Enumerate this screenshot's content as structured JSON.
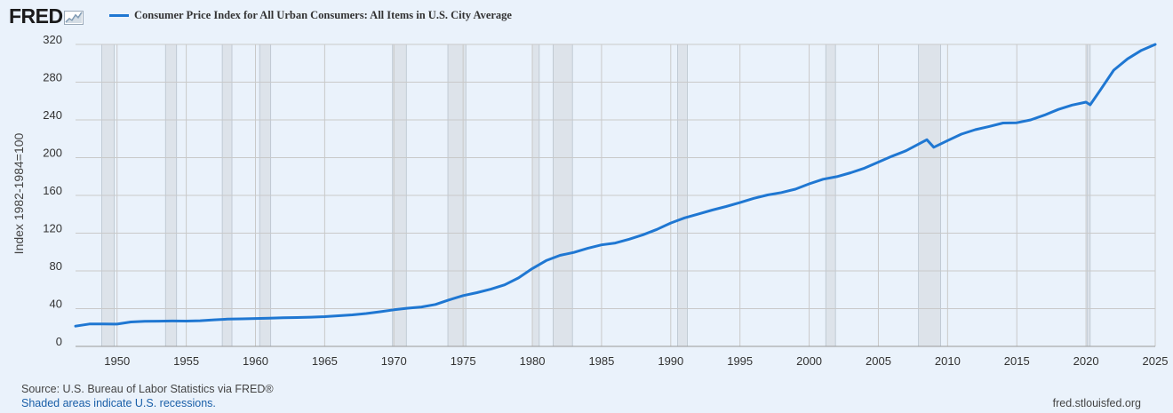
{
  "brand": {
    "logo_text": "FRED",
    "logo_mark": "fred-chart-icon"
  },
  "footer": {
    "source": "Source: U.S. Bureau of Labor Statistics via FRED®",
    "note": "Shaded areas indicate U.S. recessions.",
    "site": "fred.stlouisfed.org"
  },
  "colors": {
    "series": "#1f77d2",
    "recession": "#dde3ea",
    "grid": "#c9c9c9",
    "background": "#eaf2fb"
  },
  "chart_data": {
    "type": "line",
    "title": "",
    "xlabel": "",
    "ylabel": "Index 1982-1984=100",
    "legend": "top-left",
    "grid": true,
    "xlim": [
      1947,
      2025
    ],
    "ylim": [
      0,
      320
    ],
    "x_ticks": [
      "1950",
      "1955",
      "1960",
      "1965",
      "1970",
      "1975",
      "1980",
      "1985",
      "1990",
      "1995",
      "2000",
      "2005",
      "2010",
      "2015",
      "2020",
      "2025"
    ],
    "y_ticks": [
      "0",
      "40",
      "80",
      "120",
      "160",
      "200",
      "240",
      "280",
      "320"
    ],
    "recessions": [
      [
        1948.9,
        1949.8
      ],
      [
        1953.5,
        1954.3
      ],
      [
        1957.6,
        1958.3
      ],
      [
        1960.3,
        1961.1
      ],
      [
        1969.9,
        1970.9
      ],
      [
        1973.9,
        1975.2
      ],
      [
        1980.0,
        1980.5
      ],
      [
        1981.5,
        1982.9
      ],
      [
        1990.5,
        1991.2
      ],
      [
        2001.2,
        2001.9
      ],
      [
        2007.9,
        2009.5
      ],
      [
        2020.1,
        2020.3
      ]
    ],
    "series": [
      {
        "name": "Consumer Price Index for All Urban Consumers: All Items in U.S. City Average",
        "x": [
          1947,
          1948,
          1949,
          1950,
          1951,
          1952,
          1953,
          1954,
          1955,
          1956,
          1957,
          1958,
          1959,
          1960,
          1961,
          1962,
          1963,
          1964,
          1965,
          1966,
          1967,
          1968,
          1969,
          1970,
          1971,
          1972,
          1973,
          1974,
          1975,
          1976,
          1977,
          1978,
          1979,
          1980,
          1981,
          1982,
          1983,
          1984,
          1985,
          1986,
          1987,
          1988,
          1989,
          1990,
          1991,
          1992,
          1993,
          1994,
          1995,
          1996,
          1997,
          1998,
          1999,
          2000,
          2001,
          2002,
          2003,
          2004,
          2005,
          2006,
          2007,
          2008.5,
          2009,
          2010,
          2011,
          2012,
          2013,
          2014,
          2015,
          2016,
          2017,
          2018,
          2019,
          2020,
          2020.3,
          2021,
          2022,
          2023,
          2024,
          2025
        ],
        "y": [
          21.5,
          23.7,
          23.8,
          23.6,
          25.9,
          26.5,
          26.7,
          26.9,
          26.8,
          27.2,
          28.1,
          28.9,
          29.2,
          29.6,
          29.9,
          30.3,
          30.6,
          31.0,
          31.5,
          32.5,
          33.4,
          34.8,
          36.7,
          38.8,
          40.5,
          41.8,
          44.4,
          49.3,
          53.8,
          56.9,
          60.6,
          65.2,
          72.6,
          82.4,
          90.9,
          96.5,
          99.6,
          103.9,
          107.6,
          109.6,
          113.6,
          118.3,
          124.0,
          130.7,
          136.2,
          140.3,
          144.5,
          148.2,
          152.4,
          156.9,
          160.5,
          163.0,
          166.6,
          172.2,
          177.1,
          179.9,
          184.0,
          188.9,
          195.3,
          201.6,
          207.3,
          219.0,
          211.0,
          218.1,
          224.9,
          229.6,
          233.0,
          236.7,
          237.0,
          240.0,
          245.1,
          251.1,
          255.7,
          258.8,
          256.0,
          270.9,
          292.7,
          304.7,
          313.7,
          320.0
        ]
      }
    ]
  }
}
